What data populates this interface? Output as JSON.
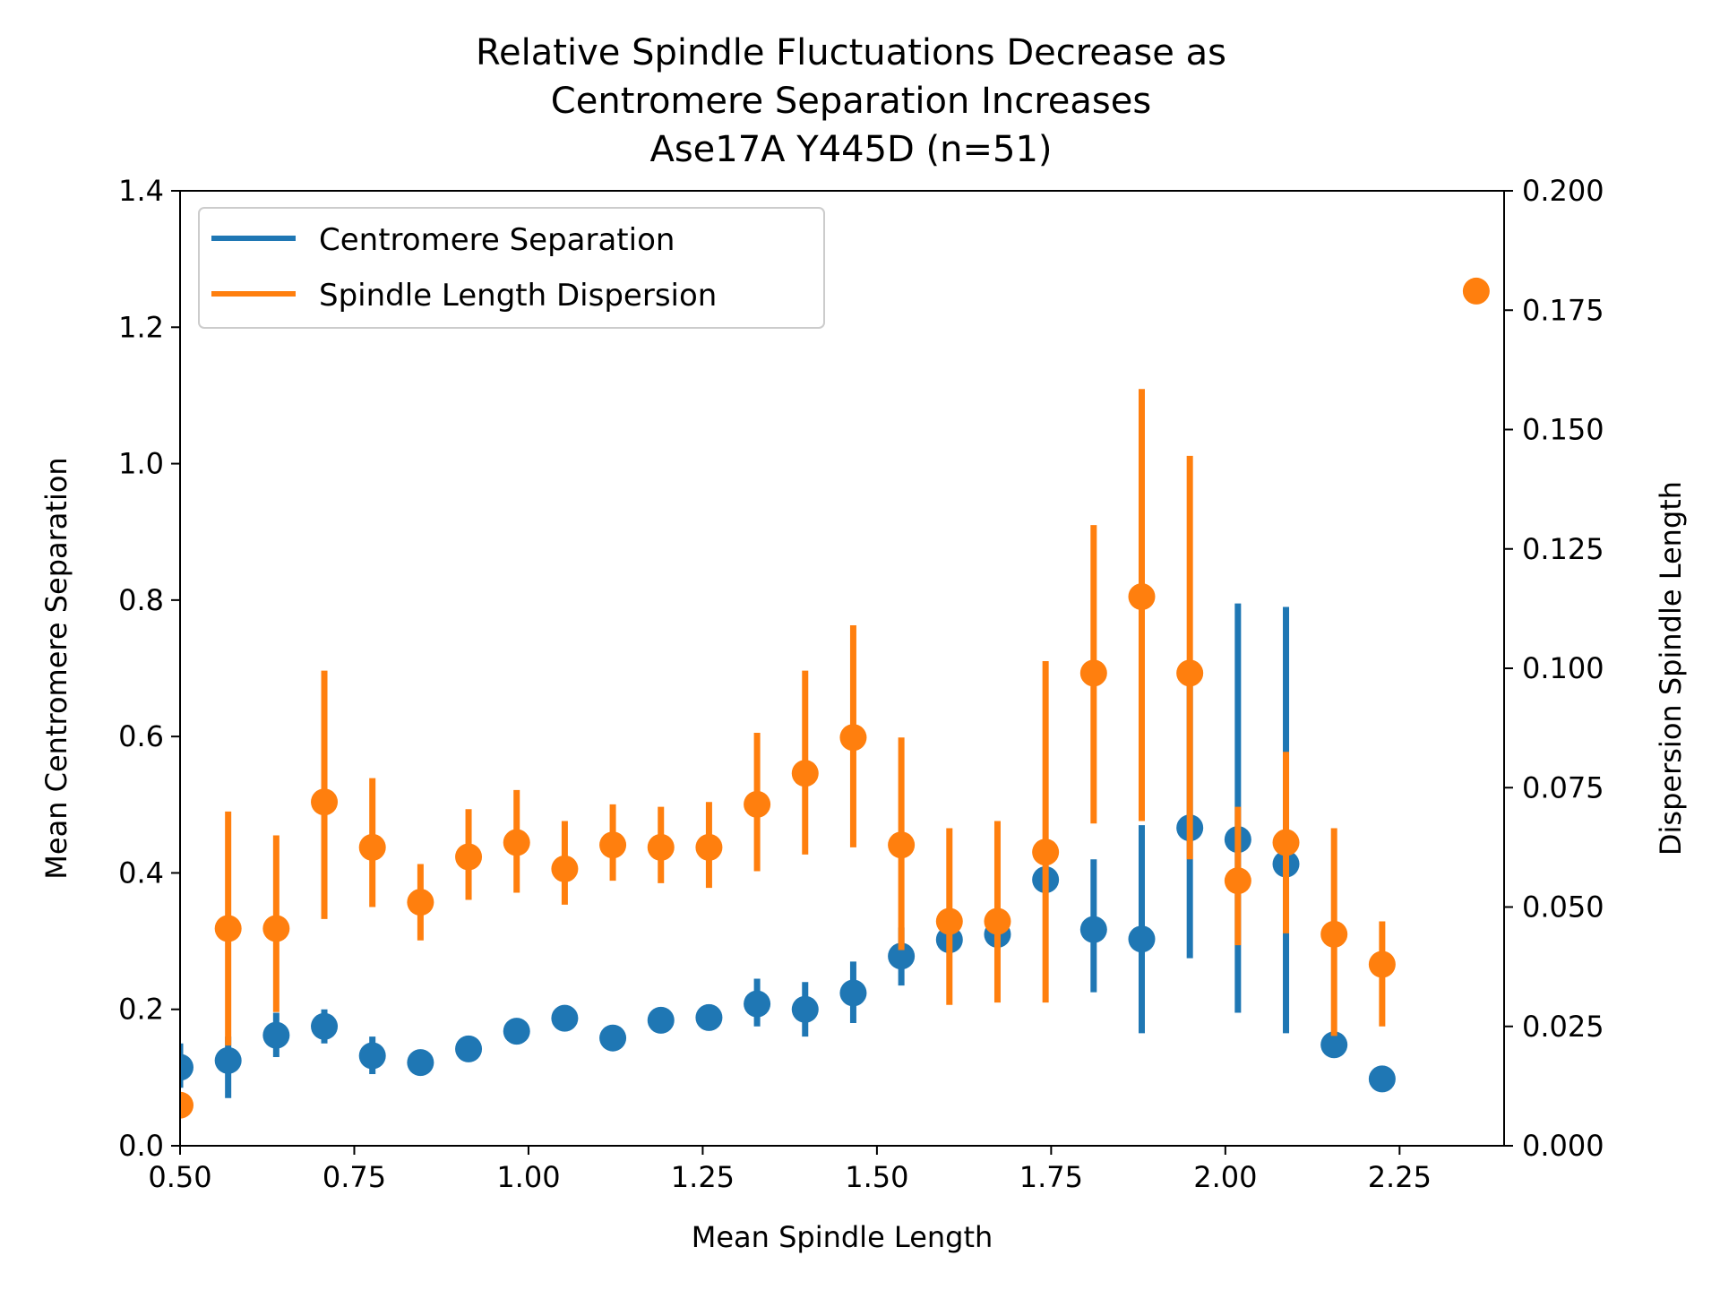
{
  "chart_data": {
    "type": "scatter",
    "title_lines": [
      "Relative Spindle Fluctuations Decrease as",
      "Centromere Separation Increases",
      "Ase17A Y445D (n=51)"
    ],
    "xlabel": "Mean Spindle Length",
    "ylabel_left": "Mean Centromere Separation",
    "ylabel_right": "Dispersion Spindle Length",
    "xlim": [
      0.5,
      2.4
    ],
    "ylim_left": [
      0.0,
      1.4
    ],
    "ylim_right": [
      0.0,
      0.2
    ],
    "x_ticks": [
      0.5,
      0.75,
      1.0,
      1.25,
      1.5,
      1.75,
      2.0,
      2.25
    ],
    "x_tick_labels": [
      "0.50",
      "0.75",
      "1.00",
      "1.25",
      "1.50",
      "1.75",
      "2.00",
      "2.25"
    ],
    "y_left_ticks": [
      0.0,
      0.2,
      0.4,
      0.6,
      0.8,
      1.0,
      1.2,
      1.4
    ],
    "y_left_tick_labels": [
      "0.0",
      "0.2",
      "0.4",
      "0.6",
      "0.8",
      "1.0",
      "1.2",
      "1.4"
    ],
    "y_right_ticks": [
      0.0,
      0.025,
      0.05,
      0.075,
      0.1,
      0.125,
      0.15,
      0.175,
      0.2
    ],
    "y_right_tick_labels": [
      "0.000",
      "0.025",
      "0.050",
      "0.075",
      "0.100",
      "0.125",
      "0.150",
      "0.175",
      "0.200"
    ],
    "grid": false,
    "legend_placement": "upper-left",
    "series": [
      {
        "name": "Centromere Separation",
        "axis": "left",
        "color": "#1f77b4",
        "points": [
          {
            "x": 0.5,
            "y": 0.115,
            "err_low": 0.085,
            "err_high": 0.15
          },
          {
            "x": 0.569,
            "y": 0.125,
            "err_low": 0.07,
            "err_high": 0.16
          },
          {
            "x": 0.638,
            "y": 0.162,
            "err_low": 0.13,
            "err_high": 0.195
          },
          {
            "x": 0.707,
            "y": 0.175,
            "err_low": 0.15,
            "err_high": 0.2
          },
          {
            "x": 0.776,
            "y": 0.132,
            "err_low": 0.105,
            "err_high": 0.16
          },
          {
            "x": 0.845,
            "y": 0.122,
            "err_low": 0.11,
            "err_high": 0.135
          },
          {
            "x": 0.914,
            "y": 0.142,
            "err_low": 0.13,
            "err_high": 0.155
          },
          {
            "x": 0.983,
            "y": 0.168,
            "err_low": 0.155,
            "err_high": 0.18
          },
          {
            "x": 1.052,
            "y": 0.187,
            "err_low": 0.175,
            "err_high": 0.2
          },
          {
            "x": 1.121,
            "y": 0.158,
            "err_low": 0.145,
            "err_high": 0.17
          },
          {
            "x": 1.19,
            "y": 0.184,
            "err_low": 0.17,
            "err_high": 0.197
          },
          {
            "x": 1.259,
            "y": 0.188,
            "err_low": 0.17,
            "err_high": 0.207
          },
          {
            "x": 1.328,
            "y": 0.208,
            "err_low": 0.175,
            "err_high": 0.245
          },
          {
            "x": 1.397,
            "y": 0.2,
            "err_low": 0.16,
            "err_high": 0.24
          },
          {
            "x": 1.466,
            "y": 0.224,
            "err_low": 0.18,
            "err_high": 0.27
          },
          {
            "x": 1.535,
            "y": 0.278,
            "err_low": 0.235,
            "err_high": 0.32
          },
          {
            "x": 1.604,
            "y": 0.302,
            "err_low": 0.285,
            "err_high": 0.32
          },
          {
            "x": 1.673,
            "y": 0.31,
            "err_low": 0.29,
            "err_high": 0.33
          },
          {
            "x": 1.742,
            "y": 0.39,
            "err_low": 0.375,
            "err_high": 0.405
          },
          {
            "x": 1.811,
            "y": 0.317,
            "err_low": 0.225,
            "err_high": 0.42
          },
          {
            "x": 1.88,
            "y": 0.303,
            "err_low": 0.165,
            "err_high": 0.47
          },
          {
            "x": 1.949,
            "y": 0.466,
            "err_low": 0.275,
            "err_high": 0.7
          },
          {
            "x": 2.018,
            "y": 0.449,
            "err_low": 0.195,
            "err_high": 0.795
          },
          {
            "x": 2.087,
            "y": 0.413,
            "err_low": 0.165,
            "err_high": 0.79
          },
          {
            "x": 2.156,
            "y": 0.148,
            "err_low": 0.148,
            "err_high": 0.148
          },
          {
            "x": 2.225,
            "y": 0.098,
            "err_low": 0.098,
            "err_high": 0.098
          }
        ]
      },
      {
        "name": "Spindle Length Dispersion",
        "axis": "right",
        "color": "#ff7f0e",
        "points": [
          {
            "x": 0.5,
            "y": 0.0085,
            "err_low": 0.0085,
            "err_high": 0.0085
          },
          {
            "x": 0.569,
            "y": 0.0455,
            "err_low": 0.021,
            "err_high": 0.07
          },
          {
            "x": 0.638,
            "y": 0.0455,
            "err_low": 0.028,
            "err_high": 0.065
          },
          {
            "x": 0.707,
            "y": 0.072,
            "err_low": 0.0475,
            "err_high": 0.0995
          },
          {
            "x": 0.776,
            "y": 0.0625,
            "err_low": 0.05,
            "err_high": 0.077
          },
          {
            "x": 0.845,
            "y": 0.051,
            "err_low": 0.043,
            "err_high": 0.059
          },
          {
            "x": 0.914,
            "y": 0.0605,
            "err_low": 0.0515,
            "err_high": 0.0705
          },
          {
            "x": 0.983,
            "y": 0.0635,
            "err_low": 0.053,
            "err_high": 0.0745
          },
          {
            "x": 1.052,
            "y": 0.058,
            "err_low": 0.0505,
            "err_high": 0.068
          },
          {
            "x": 1.121,
            "y": 0.063,
            "err_low": 0.0555,
            "err_high": 0.0715
          },
          {
            "x": 1.19,
            "y": 0.0625,
            "err_low": 0.055,
            "err_high": 0.071
          },
          {
            "x": 1.259,
            "y": 0.0625,
            "err_low": 0.054,
            "err_high": 0.072
          },
          {
            "x": 1.328,
            "y": 0.0715,
            "err_low": 0.0575,
            "err_high": 0.0865
          },
          {
            "x": 1.397,
            "y": 0.078,
            "err_low": 0.061,
            "err_high": 0.0995
          },
          {
            "x": 1.466,
            "y": 0.0855,
            "err_low": 0.0625,
            "err_high": 0.109
          },
          {
            "x": 1.535,
            "y": 0.063,
            "err_low": 0.041,
            "err_high": 0.0855
          },
          {
            "x": 1.604,
            "y": 0.047,
            "err_low": 0.0295,
            "err_high": 0.0665
          },
          {
            "x": 1.673,
            "y": 0.047,
            "err_low": 0.03,
            "err_high": 0.068
          },
          {
            "x": 1.742,
            "y": 0.0615,
            "err_low": 0.03,
            "err_high": 0.1015
          },
          {
            "x": 1.811,
            "y": 0.099,
            "err_low": 0.0675,
            "err_high": 0.13
          },
          {
            "x": 1.88,
            "y": 0.115,
            "err_low": 0.068,
            "err_high": 0.1585
          },
          {
            "x": 1.949,
            "y": 0.099,
            "err_low": 0.06,
            "err_high": 0.1445
          },
          {
            "x": 2.018,
            "y": 0.0555,
            "err_low": 0.042,
            "err_high": 0.071
          },
          {
            "x": 2.087,
            "y": 0.0635,
            "err_low": 0.0445,
            "err_high": 0.0825
          },
          {
            "x": 2.156,
            "y": 0.0443,
            "err_low": 0.023,
            "err_high": 0.0665
          },
          {
            "x": 2.225,
            "y": 0.038,
            "err_low": 0.025,
            "err_high": 0.047
          },
          {
            "x": 2.36,
            "y": 0.179,
            "err_low": 0.179,
            "err_high": 0.179
          }
        ]
      }
    ]
  }
}
